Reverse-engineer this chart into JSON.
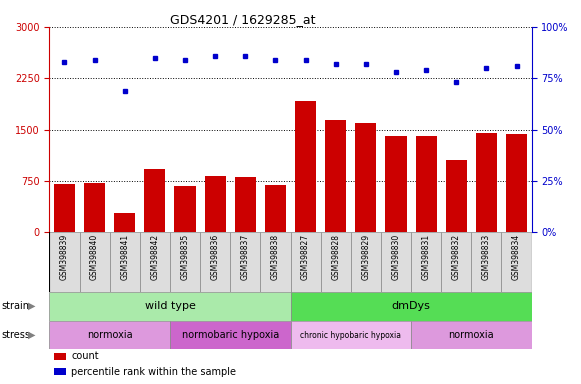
{
  "title": "GDS4201 / 1629285_at",
  "samples": [
    "GSM398839",
    "GSM398840",
    "GSM398841",
    "GSM398842",
    "GSM398835",
    "GSM398836",
    "GSM398837",
    "GSM398838",
    "GSM398827",
    "GSM398828",
    "GSM398829",
    "GSM398830",
    "GSM398831",
    "GSM398832",
    "GSM398833",
    "GSM398834"
  ],
  "counts": [
    710,
    720,
    280,
    920,
    680,
    820,
    810,
    690,
    1920,
    1640,
    1590,
    1400,
    1410,
    1060,
    1450,
    1430
  ],
  "percentile_ranks": [
    83,
    84,
    69,
    85,
    84,
    86,
    86,
    84,
    84,
    82,
    82,
    78,
    79,
    73,
    80,
    81
  ],
  "ylim_left": [
    0,
    3000
  ],
  "ylim_right": [
    0,
    100
  ],
  "yticks_left": [
    0,
    750,
    1500,
    2250,
    3000
  ],
  "yticks_right": [
    0,
    25,
    50,
    75,
    100
  ],
  "bar_color": "#cc0000",
  "dot_color": "#0000cc",
  "strain_groups": [
    {
      "label": "wild type",
      "start": 0,
      "end": 8,
      "color": "#aaeaaa"
    },
    {
      "label": "dmDys",
      "start": 8,
      "end": 16,
      "color": "#55dd55"
    }
  ],
  "stress_groups": [
    {
      "label": "normoxia",
      "start": 0,
      "end": 4,
      "color": "#dd99dd"
    },
    {
      "label": "normobaric hypoxia",
      "start": 4,
      "end": 8,
      "color": "#cc66cc"
    },
    {
      "label": "chronic hypobaric hypoxia",
      "start": 8,
      "end": 12,
      "color": "#eebbee"
    },
    {
      "label": "normoxia",
      "start": 12,
      "end": 16,
      "color": "#dd99dd"
    }
  ],
  "legend_items": [
    {
      "label": "count",
      "color": "#cc0000"
    },
    {
      "label": "percentile rank within the sample",
      "color": "#0000cc"
    }
  ],
  "background_color": "#ffffff",
  "tick_label_color_left": "#cc0000",
  "tick_label_color_right": "#0000cc",
  "xtick_bg": "#dddddd",
  "xtick_border": "#888888"
}
